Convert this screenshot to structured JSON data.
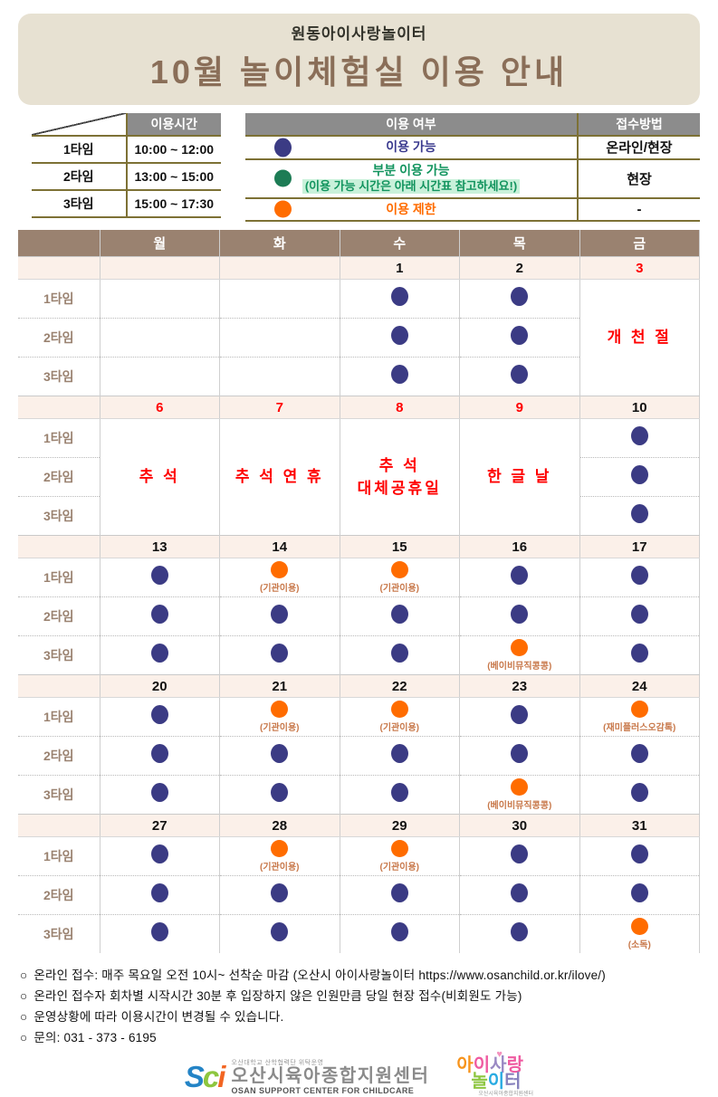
{
  "header": {
    "org": "원동아이사랑놀이터",
    "title": "10월  놀이체험실  이용  안내"
  },
  "time_table": {
    "header": "이용시간",
    "rows": [
      {
        "label": "1타임",
        "time": "10:00 ~ 12:00"
      },
      {
        "label": "2타임",
        "time": "13:00 ~ 15:00"
      },
      {
        "label": "3타임",
        "time": "15:00 ~ 17:30"
      }
    ]
  },
  "status_table": {
    "col1_header": "이용 여부",
    "col2_header": "접수방법",
    "rows": [
      {
        "dot": "navy",
        "icon": "available-dot",
        "label": "이용 가능",
        "sub": "",
        "method": "온라인/현장"
      },
      {
        "dot": "green",
        "icon": "partial-available-dot",
        "label": "부분 이용 가능",
        "sub": "(이용 가능 시간은 아래 시간표 참고하세요!)",
        "method": "현장"
      },
      {
        "dot": "orange",
        "icon": "restricted-dot",
        "label": "이용 제한",
        "sub": "",
        "method": "-"
      }
    ]
  },
  "calendar": {
    "day_headers": [
      "월",
      "화",
      "수",
      "목",
      "금"
    ],
    "time_labels": [
      "1타임",
      "2타임",
      "3타임"
    ],
    "weeks": [
      {
        "dates": [
          {
            "t": ""
          },
          {
            "t": ""
          },
          {
            "t": "1"
          },
          {
            "t": "2"
          },
          {
            "t": "3",
            "red": true
          }
        ],
        "holidays": [
          null,
          null,
          null,
          null,
          "개 천 절"
        ],
        "rows": [
          [
            null,
            null,
            {
              "dot": "navy"
            },
            {
              "dot": "navy"
            },
            null
          ],
          [
            null,
            null,
            {
              "dot": "navy"
            },
            {
              "dot": "navy"
            },
            null
          ],
          [
            null,
            null,
            {
              "dot": "navy"
            },
            {
              "dot": "navy"
            },
            null
          ]
        ]
      },
      {
        "dates": [
          {
            "t": "6",
            "red": true
          },
          {
            "t": "7",
            "red": true
          },
          {
            "t": "8",
            "red": true
          },
          {
            "t": "9",
            "red": true
          },
          {
            "t": "10"
          }
        ],
        "holidays": [
          "추 석",
          "추 석 연 휴",
          "추 석\n대체공휴일",
          "한 글 날",
          null
        ],
        "rows": [
          [
            null,
            null,
            null,
            null,
            {
              "dot": "navy"
            }
          ],
          [
            null,
            null,
            null,
            null,
            {
              "dot": "navy"
            }
          ],
          [
            null,
            null,
            null,
            null,
            {
              "dot": "navy"
            }
          ]
        ]
      },
      {
        "dates": [
          {
            "t": "13"
          },
          {
            "t": "14"
          },
          {
            "t": "15"
          },
          {
            "t": "16"
          },
          {
            "t": "17"
          }
        ],
        "holidays": [
          null,
          null,
          null,
          null,
          null
        ],
        "rows": [
          [
            {
              "dot": "navy"
            },
            {
              "dot": "orange",
              "cap": "(기관이용)"
            },
            {
              "dot": "orange",
              "cap": "(기관이용)"
            },
            {
              "dot": "navy"
            },
            {
              "dot": "navy"
            }
          ],
          [
            {
              "dot": "navy"
            },
            {
              "dot": "navy"
            },
            {
              "dot": "navy"
            },
            {
              "dot": "navy"
            },
            {
              "dot": "navy"
            }
          ],
          [
            {
              "dot": "navy"
            },
            {
              "dot": "navy"
            },
            {
              "dot": "navy"
            },
            {
              "dot": "orange",
              "cap": "(베이비뮤직콩콩)"
            },
            {
              "dot": "navy"
            }
          ]
        ]
      },
      {
        "dates": [
          {
            "t": "20"
          },
          {
            "t": "21"
          },
          {
            "t": "22"
          },
          {
            "t": "23"
          },
          {
            "t": "24"
          }
        ],
        "holidays": [
          null,
          null,
          null,
          null,
          null
        ],
        "rows": [
          [
            {
              "dot": "navy"
            },
            {
              "dot": "orange",
              "cap": "(기관이용)"
            },
            {
              "dot": "orange",
              "cap": "(기관이용)"
            },
            {
              "dot": "navy"
            },
            {
              "dot": "orange",
              "cap": "(재미플러스오감톡)"
            }
          ],
          [
            {
              "dot": "navy"
            },
            {
              "dot": "navy"
            },
            {
              "dot": "navy"
            },
            {
              "dot": "navy"
            },
            {
              "dot": "navy"
            }
          ],
          [
            {
              "dot": "navy"
            },
            {
              "dot": "navy"
            },
            {
              "dot": "navy"
            },
            {
              "dot": "orange",
              "cap": "(베이비뮤직콩콩)"
            },
            {
              "dot": "navy"
            }
          ]
        ]
      },
      {
        "dates": [
          {
            "t": "27"
          },
          {
            "t": "28"
          },
          {
            "t": "29"
          },
          {
            "t": "30"
          },
          {
            "t": "31"
          }
        ],
        "holidays": [
          null,
          null,
          null,
          null,
          null
        ],
        "rows": [
          [
            {
              "dot": "navy"
            },
            {
              "dot": "orange",
              "cap": "(기관이용)"
            },
            {
              "dot": "orange",
              "cap": "(기관이용)"
            },
            {
              "dot": "navy"
            },
            {
              "dot": "navy"
            }
          ],
          [
            {
              "dot": "navy"
            },
            {
              "dot": "navy"
            },
            {
              "dot": "navy"
            },
            {
              "dot": "navy"
            },
            {
              "dot": "navy"
            }
          ],
          [
            {
              "dot": "navy"
            },
            {
              "dot": "navy"
            },
            {
              "dot": "navy"
            },
            {
              "dot": "navy"
            },
            {
              "dot": "orange",
              "cap": "(소독)"
            }
          ]
        ]
      }
    ]
  },
  "notes": {
    "bullet": "○",
    "items": [
      "온라인 접수: 매주 목요일 오전 10시~ 선착순 마감 (오산시 아이사랑놀이터  https://www.osanchild.or.kr/ilove/)",
      "온라인 접수자 회차별 시작시간 30분 후 입장하지 않은 인원만큼 당일 현장 접수(비회원도 가능)",
      "운영상황에 따라 이용시간이 변경될 수 있습니다.",
      "문의: 031 - 373 - 6195"
    ]
  },
  "logos": {
    "left": {
      "mark": "Sci",
      "small_top": "오산대학교 산학협력단 위탁운영",
      "korean": "오산시육아종합지원센터",
      "english": "OSAN SUPPORT CENTER FOR CHILDCARE"
    },
    "right": {
      "line1": [
        {
          "ch": "아",
          "color": "#f7941d"
        },
        {
          "ch": "이",
          "color": "#ef5ba1"
        },
        {
          "ch": "사",
          "color": "#9b8ac4"
        },
        {
          "ch": "랑",
          "color": "#ef5ba1"
        }
      ],
      "line2": [
        {
          "ch": "놀",
          "color": "#8dc63f"
        },
        {
          "ch": "이",
          "color": "#29abe2"
        },
        {
          "ch": "터",
          "color": "#8781bd"
        }
      ],
      "heart": "♥",
      "sub": "오산시육아종합지원센터"
    }
  },
  "colors": {
    "available": "#3b3b84",
    "partial": "#1d7c55",
    "restricted": "#ff6c00",
    "holiday_red": "#ff0000",
    "calendar_header_brown": "#9a8270",
    "banner_beige": "#e7e1d2",
    "title_brown": "#8a6e58",
    "legend_header_gray": "#8c8c8c",
    "legend_border_olive": "#7d7135",
    "date_row_pink": "#fbf0e9",
    "caption_brown": "#c8784a",
    "highlight_green_bg": "#c9f1da"
  }
}
